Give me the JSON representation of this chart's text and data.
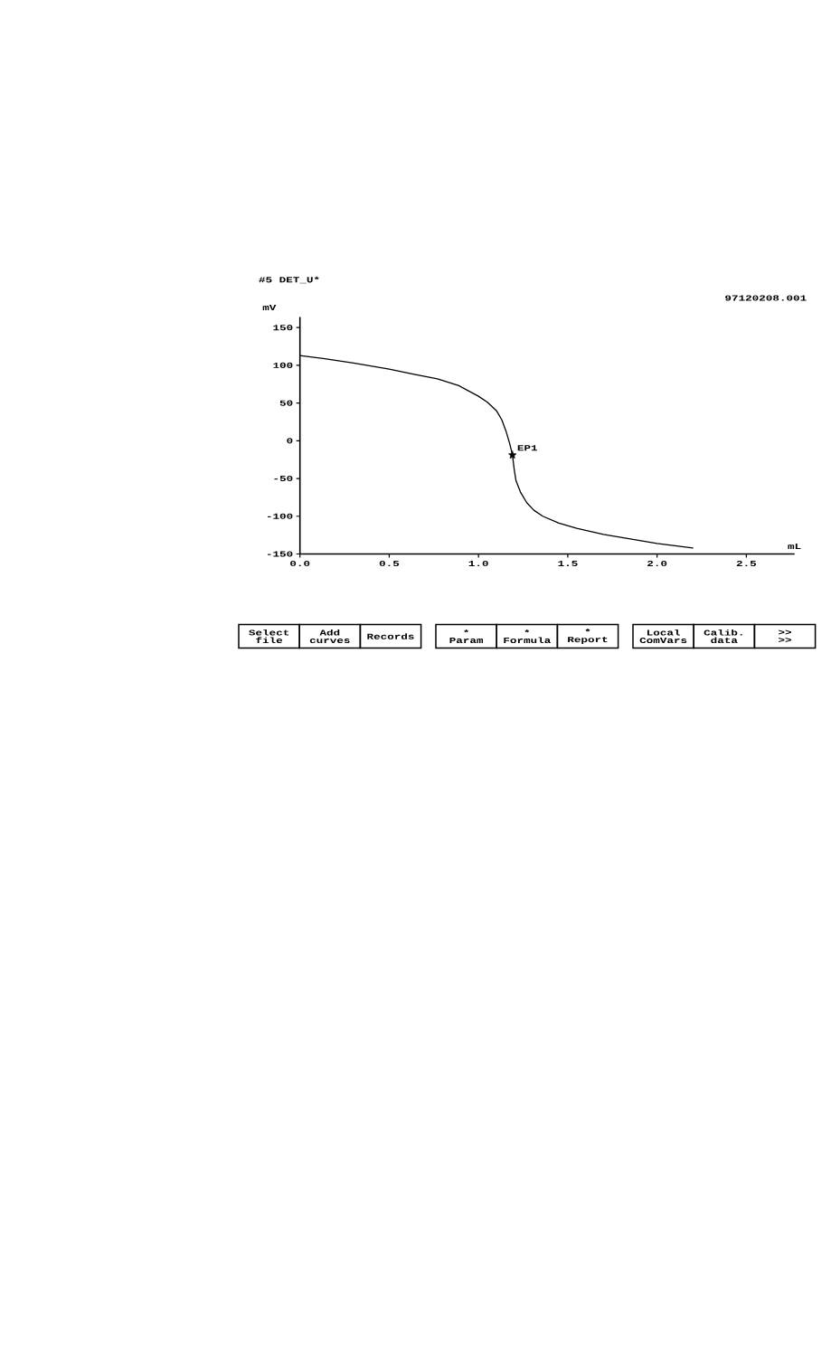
{
  "chart_data": {
    "type": "line",
    "title": "#5 DET_U*",
    "subtitle": "97120208.001",
    "xlabel": "mL",
    "ylabel": "mV",
    "xlim": [
      0,
      2.77
    ],
    "ylim": [
      -150,
      164
    ],
    "xticks": [
      {
        "value": 0,
        "label": "0.0"
      },
      0.5,
      {
        "value": 1,
        "label": "1.0"
      },
      1.5,
      {
        "value": 2,
        "label": "2.0"
      },
      2.5
    ],
    "yticks": [
      -150,
      -100,
      -50,
      0,
      50,
      100,
      150
    ],
    "series": [
      {
        "color": "#000000",
        "x": [
          0.0,
          0.13,
          0.3,
          0.5,
          0.64,
          0.77,
          0.89,
          1.0,
          1.05,
          1.1,
          1.13,
          1.155,
          1.175,
          1.19,
          1.2,
          1.21,
          1.235,
          1.27,
          1.31,
          1.36,
          1.45,
          1.55,
          1.7,
          1.85,
          2.0,
          2.1,
          2.2
        ],
        "values": [
          113,
          109,
          103,
          95,
          88,
          82,
          73,
          59,
          51,
          40,
          28,
          12,
          -4,
          -19,
          -38,
          -53,
          -68,
          -82,
          -92,
          -100,
          -109,
          -116,
          -124,
          -130,
          -136,
          -139,
          -142
        ]
      },
      {
        "type": "scatter",
        "color": "#000000",
        "x": [
          1.19
        ],
        "values": [
          -19
        ],
        "marker": "star"
      }
    ],
    "annotations": [
      {
        "text": "EP1",
        "x": 1.19,
        "y": -19
      },
      "Select file",
      "Add curves",
      "Records",
      "* Param",
      "* Formula",
      "* Report",
      "Local ComVars",
      "Calib. data",
      ">> >>"
    ]
  }
}
